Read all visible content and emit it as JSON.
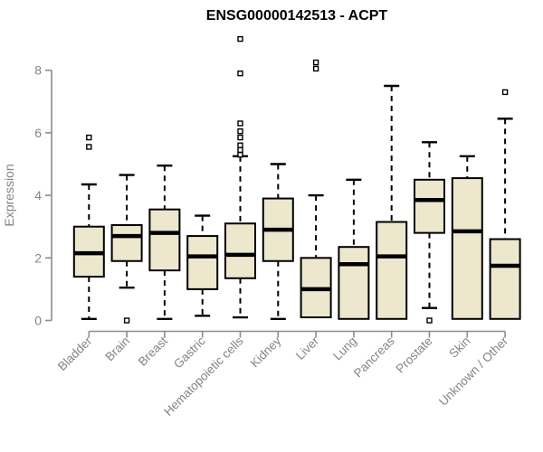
{
  "title": "ENSG00000142513 - ACPT",
  "chart_data": {
    "type": "boxplot",
    "title": "ENSG00000142513 - ACPT",
    "xlabel": "",
    "ylabel": "Expression",
    "ylim": [
      0,
      8
    ],
    "yticks": [
      0,
      2,
      4,
      6,
      8
    ],
    "grid": false,
    "legend": "none",
    "categories": [
      "Bladder",
      "Brain",
      "Breast",
      "Gastric",
      "Hematopoietic cells",
      "Kidney",
      "Liver",
      "Lung",
      "Pancreas",
      "Prostate",
      "Skin",
      "Unknown / Other"
    ],
    "series": [
      {
        "category": "Bladder",
        "whisker_low": 0.05,
        "q1": 1.4,
        "median": 2.15,
        "q3": 3.0,
        "whisker_high": 4.35,
        "outliers": [
          5.55,
          5.85
        ]
      },
      {
        "category": "Brain",
        "whisker_low": 1.05,
        "q1": 1.9,
        "median": 2.7,
        "q3": 3.05,
        "whisker_high": 4.65,
        "outliers": [
          0.0
        ]
      },
      {
        "category": "Breast",
        "whisker_low": 0.05,
        "q1": 1.6,
        "median": 2.8,
        "q3": 3.55,
        "whisker_high": 4.95,
        "outliers": []
      },
      {
        "category": "Gastric",
        "whisker_low": 0.15,
        "q1": 1.0,
        "median": 2.05,
        "q3": 2.7,
        "whisker_high": 3.35,
        "outliers": []
      },
      {
        "category": "Hematopoietic cells",
        "whisker_low": 0.1,
        "q1": 1.35,
        "median": 2.1,
        "q3": 3.1,
        "whisker_high": 5.25,
        "outliers": [
          5.3,
          5.45,
          5.6,
          5.85,
          6.05,
          6.3,
          7.9,
          9.0
        ]
      },
      {
        "category": "Kidney",
        "whisker_low": 0.05,
        "q1": 1.9,
        "median": 2.9,
        "q3": 3.9,
        "whisker_high": 5.0,
        "outliers": []
      },
      {
        "category": "Liver",
        "whisker_low": 0.1,
        "q1": 0.1,
        "median": 1.0,
        "q3": 2.0,
        "whisker_high": 4.0,
        "outliers": [
          8.05,
          8.25
        ]
      },
      {
        "category": "Lung",
        "whisker_low": 0.05,
        "q1": 0.05,
        "median": 1.8,
        "q3": 2.35,
        "whisker_high": 4.5,
        "outliers": []
      },
      {
        "category": "Pancreas",
        "whisker_low": 0.05,
        "q1": 0.05,
        "median": 2.05,
        "q3": 3.15,
        "whisker_high": 7.5,
        "outliers": []
      },
      {
        "category": "Prostate",
        "whisker_low": 0.4,
        "q1": 2.8,
        "median": 3.85,
        "q3": 4.5,
        "whisker_high": 5.7,
        "outliers": [
          0.0
        ]
      },
      {
        "category": "Skin",
        "whisker_low": 0.05,
        "q1": 0.05,
        "median": 2.85,
        "q3": 4.55,
        "whisker_high": 5.25,
        "outliers": []
      },
      {
        "category": "Unknown / Other",
        "whisker_low": 0.05,
        "q1": 0.05,
        "median": 1.75,
        "q3": 2.6,
        "whisker_high": 6.45,
        "outliers": [
          7.3
        ]
      }
    ],
    "colors": {
      "background": "#ffffff",
      "box_fill": "#ece7cd",
      "box_border": "#000000",
      "median": "#000000",
      "whisker": "#000000",
      "outlier_stroke": "#000000",
      "outlier_fill": "#ffffff",
      "axis_line": "#8c8c8c",
      "axis_text": "#848484",
      "title": "#000000"
    }
  }
}
